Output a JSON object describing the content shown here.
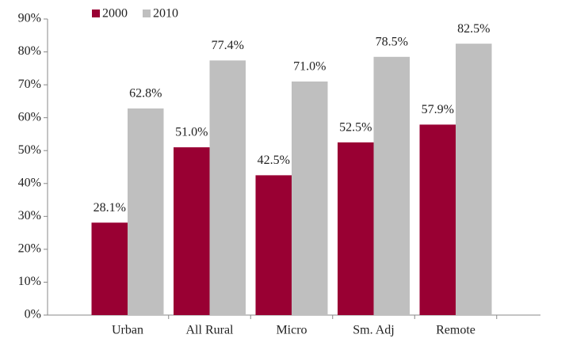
{
  "chart_data": {
    "type": "bar",
    "categories": [
      "Urban",
      "All Rural",
      "Micro",
      "Sm. Adj",
      "Remote"
    ],
    "series": [
      {
        "name": "2000",
        "color": "#990033",
        "values": [
          28.1,
          51.0,
          42.5,
          52.5,
          57.9
        ],
        "value_labels": [
          "28.1%",
          "51.0%",
          "42.5%",
          "52.5%",
          "57.9%"
        ]
      },
      {
        "name": "2010",
        "color": "#bfbfbf",
        "values": [
          62.8,
          77.4,
          71.0,
          78.5,
          82.5
        ],
        "value_labels": [
          "62.8%",
          "77.4%",
          "71.0%",
          "78.5%",
          "82.5%"
        ]
      }
    ],
    "ylim": [
      0,
      90
    ],
    "yticks": [
      {
        "value": 0,
        "label": "0%"
      },
      {
        "value": 10,
        "label": "10%"
      },
      {
        "value": 20,
        "label": "20%"
      },
      {
        "value": 30,
        "label": "30%"
      },
      {
        "value": 40,
        "label": "40%"
      },
      {
        "value": 50,
        "label": "50%"
      },
      {
        "value": 60,
        "label": "60%"
      },
      {
        "value": 70,
        "label": "70%"
      },
      {
        "value": 80,
        "label": "80%"
      },
      {
        "value": 90,
        "label": "90%"
      }
    ],
    "legend": "top-left",
    "grid": false
  }
}
